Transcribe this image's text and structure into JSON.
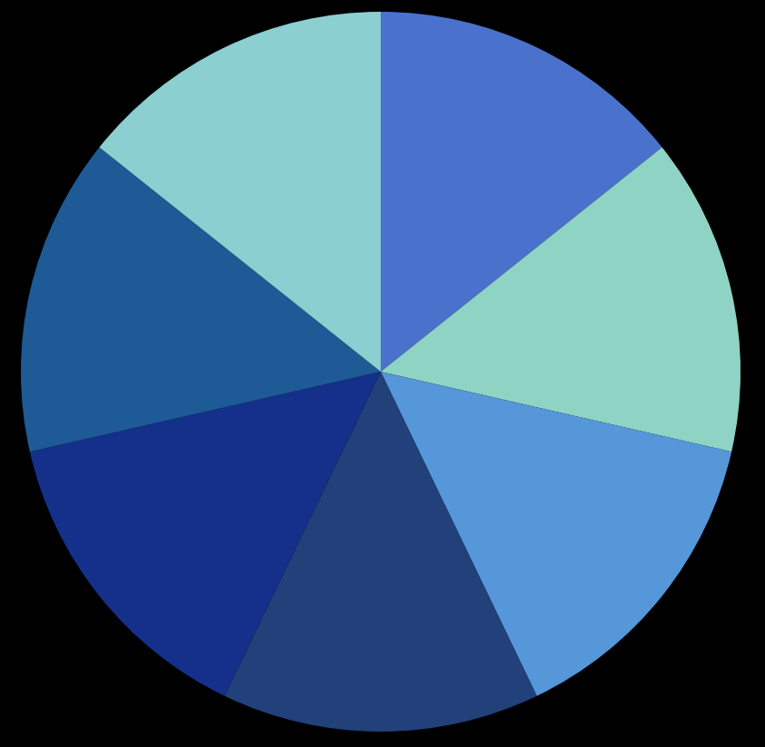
{
  "chart_data": {
    "type": "pie",
    "values": [
      14.3,
      14.3,
      14.3,
      14.3,
      14.3,
      14.3,
      14.3
    ],
    "colors": [
      "#4a72cc",
      "#8fd3c4",
      "#5597d8",
      "#22407a",
      "#14308a",
      "#1e5a96",
      "#8ccfd0"
    ]
  }
}
